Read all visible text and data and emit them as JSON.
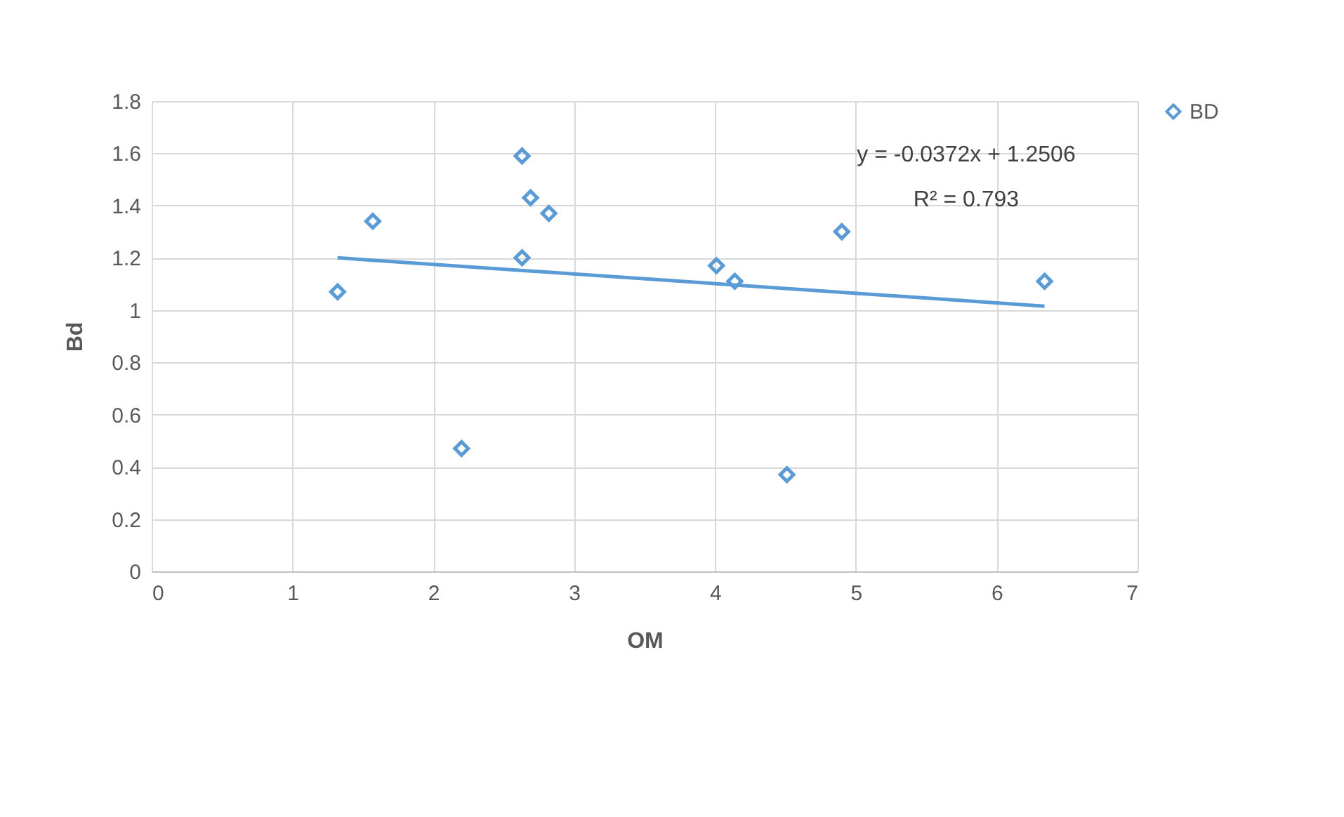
{
  "chart_data": {
    "type": "scatter",
    "xlabel": "OM",
    "ylabel": "Bd",
    "xlim": [
      0,
      7
    ],
    "xticks": [
      0,
      1,
      2,
      3,
      4,
      5,
      6,
      7
    ],
    "ylim": [
      0,
      1.8
    ],
    "yticks": [
      0,
      0.2,
      0.4,
      0.6,
      0.8,
      1,
      1.2,
      1.4,
      1.6,
      1.8
    ],
    "grid": true,
    "legend": "right",
    "marker": "diamond",
    "annotations": [
      "y = -0.0372x + 1.2506",
      "R² = 0.793"
    ],
    "series": [
      {
        "name": "BD",
        "color": "#5b9bd5",
        "x": [
          1.32,
          1.57,
          2.2,
          2.63,
          2.63,
          2.69,
          2.82,
          4.01,
          4.14,
          4.51,
          4.9,
          6.34
        ],
        "values": [
          1.07,
          1.34,
          0.47,
          1.59,
          1.2,
          1.43,
          1.37,
          1.17,
          1.11,
          0.37,
          1.3,
          1.11
        ]
      },
      {
        "type": "line",
        "marker": "none",
        "color": "#5b9bd5",
        "x": [
          1.32,
          6.34
        ],
        "values": [
          1.2,
          1.015
        ]
      }
    ]
  }
}
